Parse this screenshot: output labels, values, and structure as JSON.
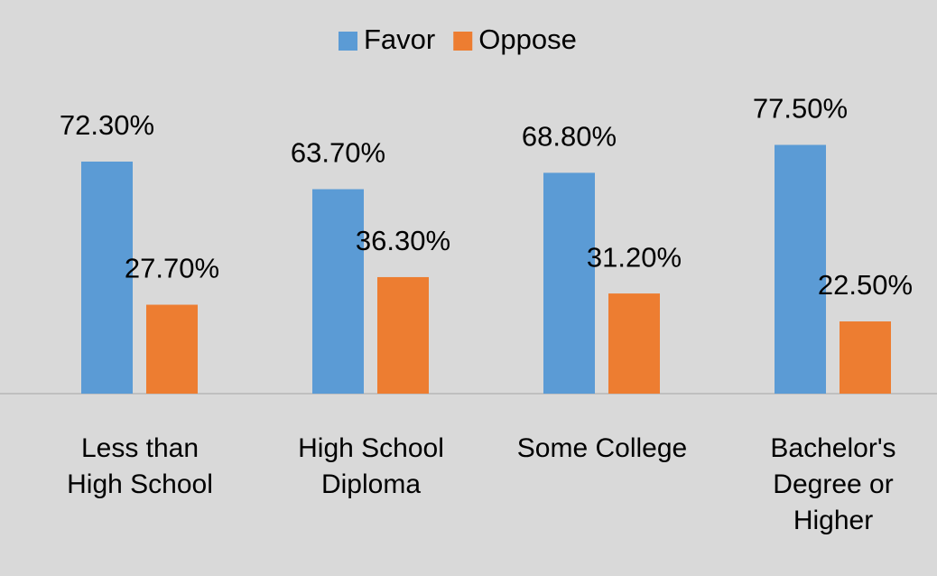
{
  "chart_data": {
    "type": "bar",
    "categories": [
      "Less than High School",
      "High School Diploma",
      "Some College",
      "Bachelor's Degree or Higher"
    ],
    "series": [
      {
        "name": "Favor",
        "color": "#5b9bd5",
        "values": [
          72.3,
          63.7,
          68.8,
          77.5
        ],
        "value_labels": [
          "72.30%",
          "63.70%",
          "68.80%",
          "77.50%"
        ]
      },
      {
        "name": "Oppose",
        "color": "#ed7d31",
        "values": [
          27.7,
          36.3,
          31.2,
          22.5
        ],
        "value_labels": [
          "27.70%",
          "36.30%",
          "31.20%",
          "22.50%"
        ]
      }
    ],
    "legend": "top"
  }
}
